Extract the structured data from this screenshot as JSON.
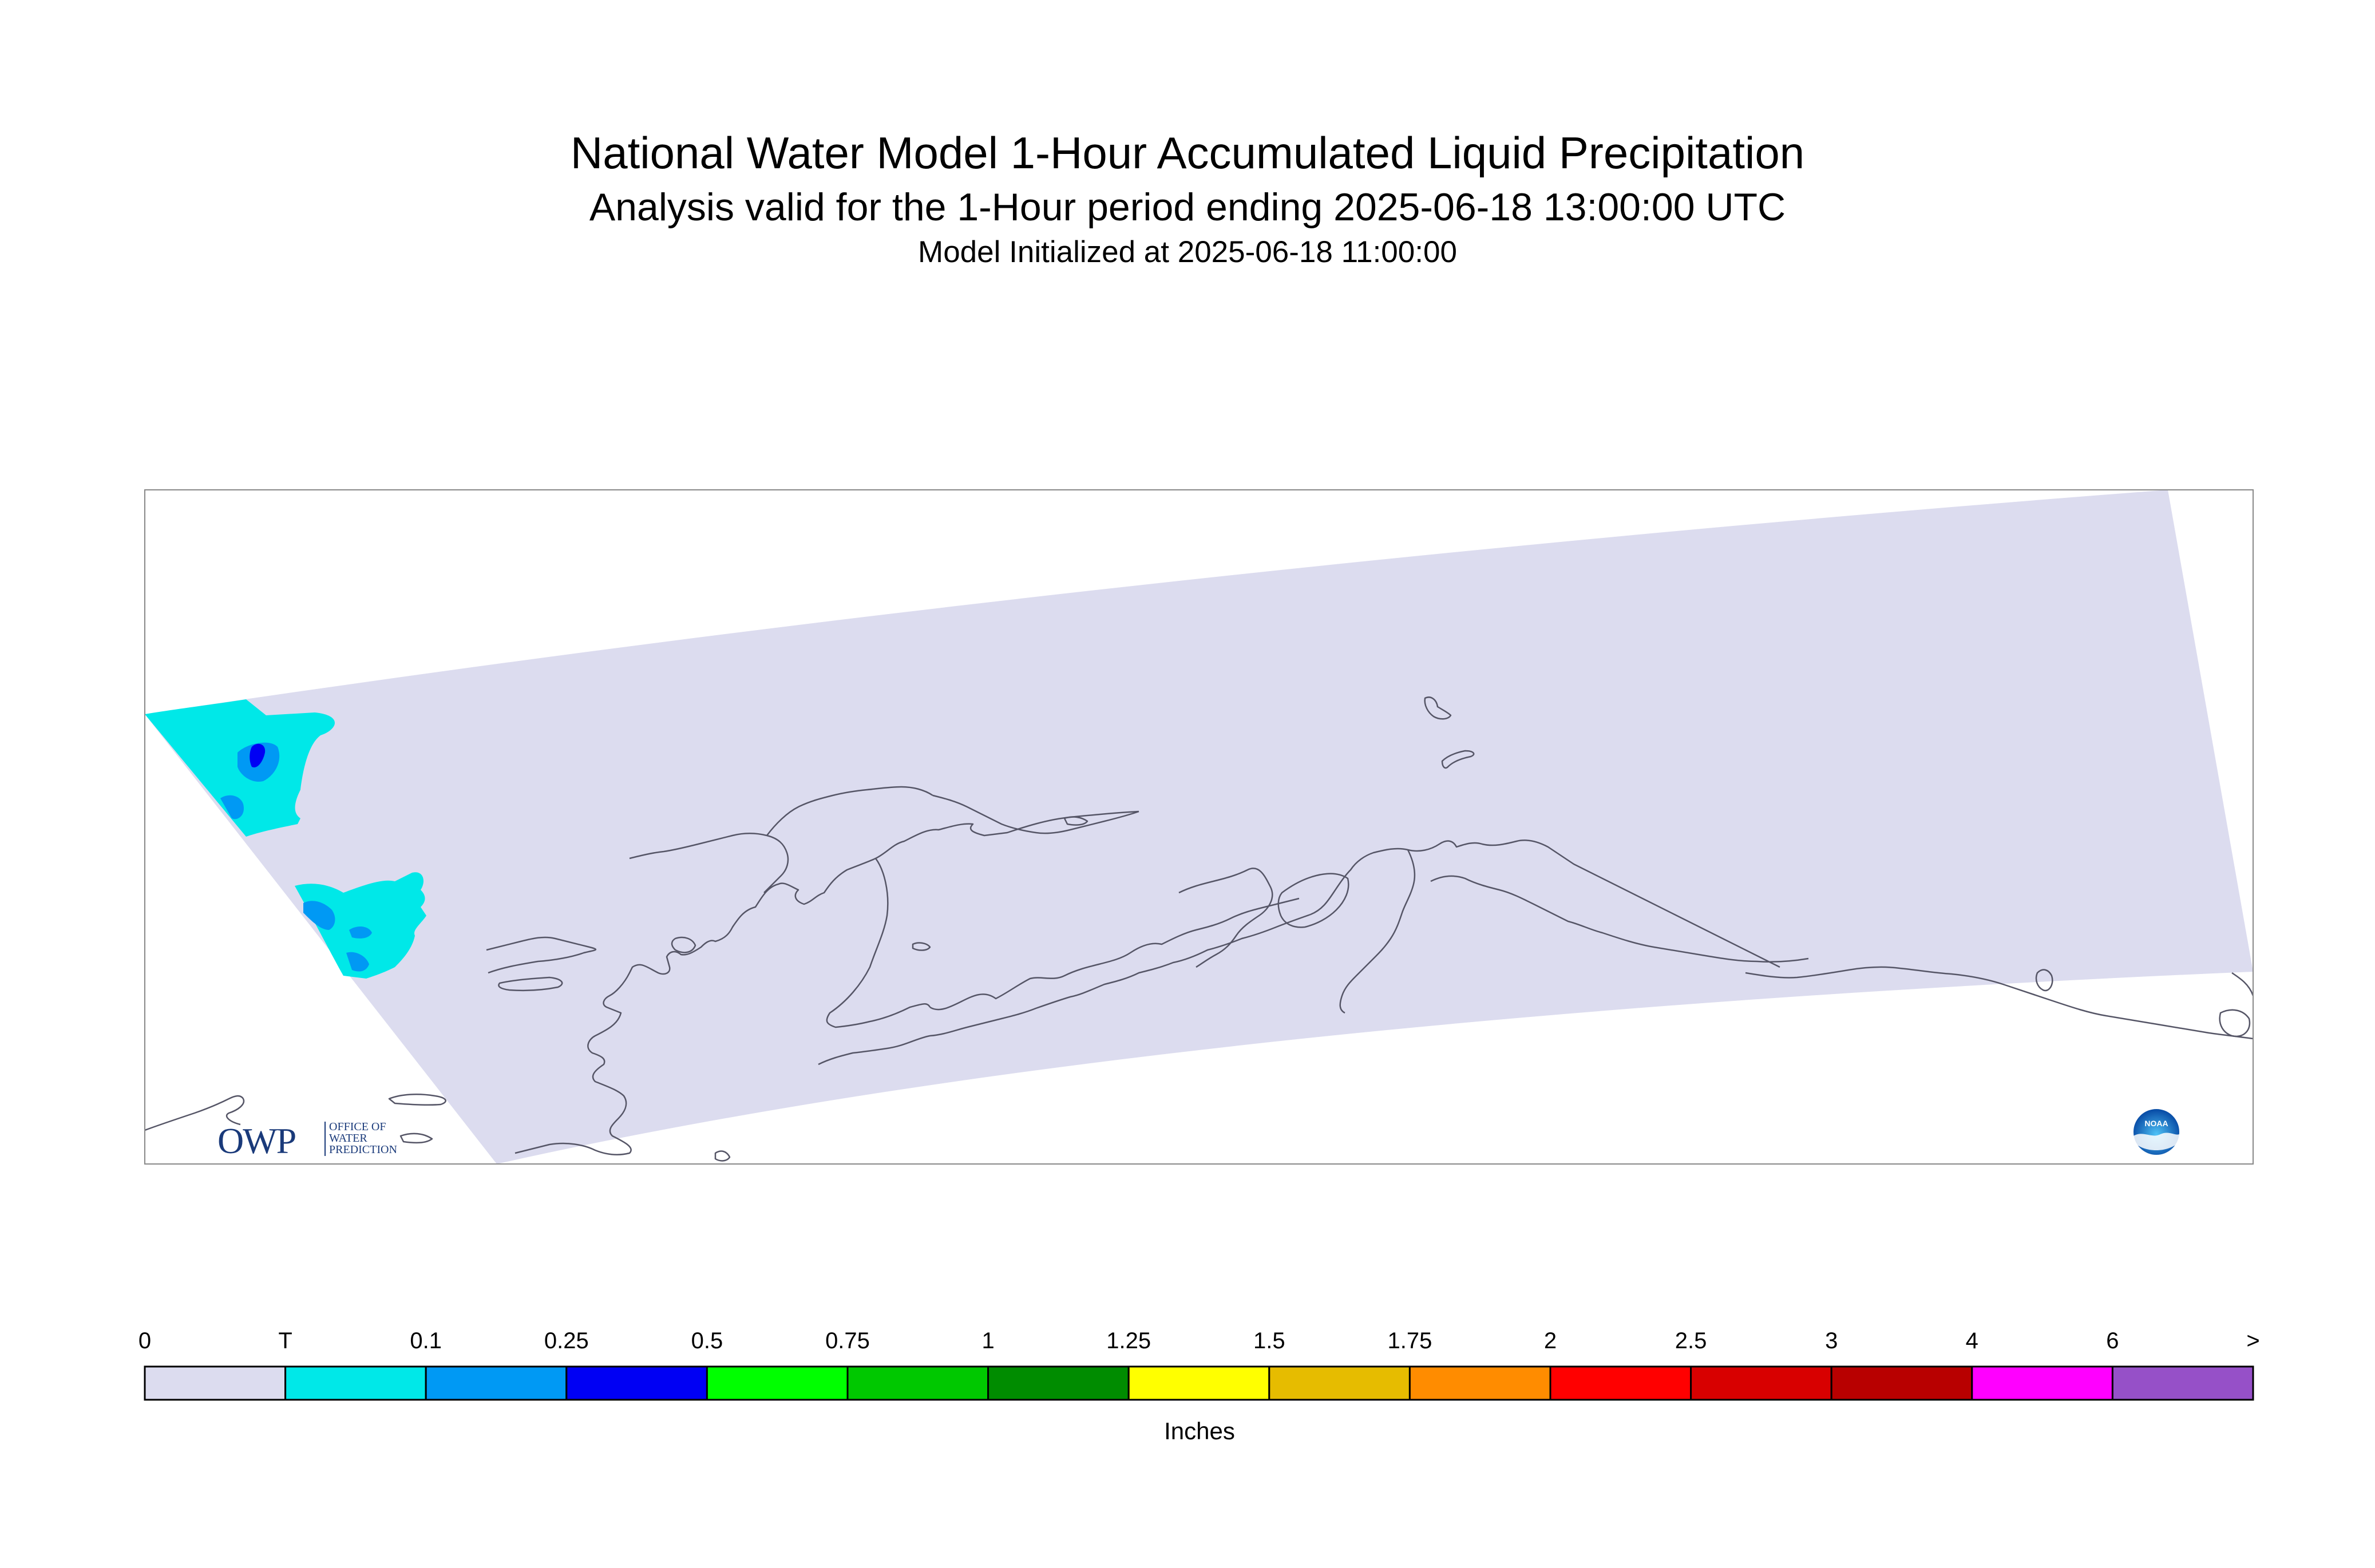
{
  "header": {
    "title": "National Water Model 1-Hour Accumulated Liquid Precipitation",
    "subtitle": "Analysis valid for the 1-Hour period ending 2025-06-18 13:00:00 UTC",
    "init_line": "Model Initialized at 2025-06-18 11:00:00"
  },
  "map": {
    "region": "Alaska",
    "domain_fill": "#dcdcef",
    "coastline_color": "#555566",
    "precip_areas": [
      {
        "location": "western Bering Sea, north cell",
        "category": "T-0.1",
        "peak_category": "0.25-0.5"
      },
      {
        "location": "western Bering Sea, south cell",
        "category": "T-0.1",
        "peak_category": "0.1-0.25"
      }
    ]
  },
  "logos": {
    "owp": {
      "mark": "OWP",
      "line1": "OFFICE OF",
      "line2": "WATER",
      "line3": "PREDICTION"
    },
    "noaa": {
      "text": "NOAA"
    }
  },
  "legend": {
    "unit_label": "Inches",
    "tick_labels": [
      "0",
      "T",
      "0.1",
      "0.25",
      "0.5",
      "0.75",
      "1",
      "1.25",
      "1.5",
      "1.75",
      "2",
      "2.5",
      "3",
      "4",
      "6",
      ">"
    ],
    "colors": [
      "#dcdcef",
      "#00e8e8",
      "#0099f4",
      "#0000f4",
      "#00ff00",
      "#00c800",
      "#008c00",
      "#ffff00",
      "#e6bc00",
      "#ff8c00",
      "#ff0000",
      "#d80000",
      "#b80000",
      "#ff00ff",
      "#9650c8"
    ]
  }
}
